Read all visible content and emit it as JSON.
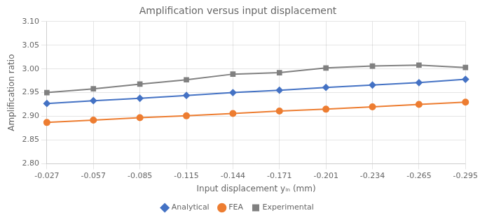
{
  "chart_data": {
    "type": "line",
    "title": "Amplification versus input displacement",
    "xlabel": "Input displacement yᵢₙ (mm)",
    "ylabel": "Amplification ratio",
    "categories": [
      "-0.027",
      "-0.057",
      "-0.085",
      "-0.115",
      "-0.144",
      "-0.171",
      "-0.201",
      "-0.234",
      "-0.265",
      "-0.295"
    ],
    "series": [
      {
        "name": "Analytical",
        "color": "#4472C4",
        "marker": "diamond",
        "values": [
          2.927,
          2.933,
          2.938,
          2.944,
          2.95,
          2.955,
          2.961,
          2.966,
          2.971,
          2.978
        ]
      },
      {
        "name": "FEA",
        "color": "#ED7D31",
        "marker": "circle",
        "values": [
          2.887,
          2.892,
          2.897,
          2.901,
          2.906,
          2.911,
          2.915,
          2.92,
          2.925,
          2.93
        ]
      },
      {
        "name": "Experimental",
        "color": "#808080",
        "marker": "square",
        "values": [
          2.95,
          2.958,
          2.968,
          2.977,
          2.989,
          2.992,
          3.002,
          3.006,
          3.008,
          3.003
        ]
      }
    ],
    "ylim": [
      2.8,
      3.1
    ],
    "yticks": [
      {
        "value": 2.8,
        "label": "2.80"
      },
      2.85,
      {
        "value": 2.9,
        "label": "2.90"
      },
      2.95,
      {
        "value": 3,
        "label": "3.00"
      },
      3.05,
      {
        "value": 3.1,
        "label": "3.10"
      }
    ],
    "grid": true,
    "legend": "bottom"
  }
}
